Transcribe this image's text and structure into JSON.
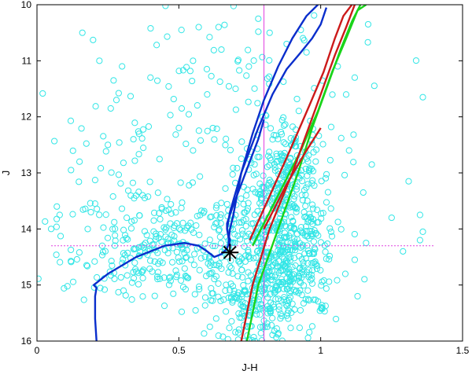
{
  "chart_data": {
    "type": "scatter",
    "title": "",
    "xlabel": "J-H",
    "ylabel": "J",
    "xlim": [
      0,
      1.5
    ],
    "ylim": [
      10,
      16
    ],
    "y_inverted": true,
    "grid": false,
    "legend": "none",
    "x_ticks": [
      {
        "value": 0,
        "label": "0"
      },
      {
        "value": 0.5,
        "label": "0.5"
      },
      {
        "value": 1,
        "label": "1"
      },
      {
        "value": 1.5,
        "label": "1.5"
      }
    ],
    "y_ticks": [
      {
        "value": 10,
        "label": "10"
      },
      {
        "value": 11,
        "label": "11"
      },
      {
        "value": 12,
        "label": "12"
      },
      {
        "value": 13,
        "label": "13"
      },
      {
        "value": 14,
        "label": "14"
      },
      {
        "value": 15,
        "label": "15"
      },
      {
        "value": 16,
        "label": "16"
      }
    ],
    "scatter_color": "#33e6e6",
    "scatter_clusters": [
      {
        "cx": 0.87,
        "cy": 14.3,
        "sx": 0.09,
        "sy": 0.75,
        "n": 560
      },
      {
        "cx": 0.88,
        "cy": 12.8,
        "sx": 0.06,
        "sy": 0.5,
        "n": 130
      },
      {
        "cx": 0.45,
        "cy": 14.4,
        "sx": 0.17,
        "sy": 0.45,
        "n": 280
      },
      {
        "cx": 0.75,
        "cy": 15.3,
        "sx": 0.08,
        "sy": 0.45,
        "n": 150
      },
      {
        "cx": 0.42,
        "cy": 12.8,
        "sx": 0.2,
        "sy": 1.0,
        "n": 90
      },
      {
        "cx": 0.75,
        "cy": 11.3,
        "sx": 0.25,
        "sy": 0.9,
        "n": 60
      }
    ],
    "scatter_outliers": [
      {
        "x": 0.16,
        "y": 10.5
      },
      {
        "x": 0.12,
        "y": 12.95
      },
      {
        "x": 0.15,
        "y": 12.8
      },
      {
        "x": 0.05,
        "y": 14.0
      },
      {
        "x": 0.07,
        "y": 13.6
      },
      {
        "x": 0.08,
        "y": 13.75
      },
      {
        "x": 0.22,
        "y": 11.0
      },
      {
        "x": 0.27,
        "y": 11.35
      },
      {
        "x": 0.28,
        "y": 11.7
      },
      {
        "x": 0.26,
        "y": 11.85
      },
      {
        "x": 0.3,
        "y": 11.1
      },
      {
        "x": 0.4,
        "y": 11.3
      },
      {
        "x": 0.55,
        "y": 11.0
      },
      {
        "x": 0.57,
        "y": 10.4
      },
      {
        "x": 0.64,
        "y": 10.4
      },
      {
        "x": 0.65,
        "y": 10.8
      },
      {
        "x": 0.7,
        "y": 11.5
      },
      {
        "x": 0.78,
        "y": 10.25
      },
      {
        "x": 0.82,
        "y": 10.5
      },
      {
        "x": 0.88,
        "y": 10.7
      },
      {
        "x": 0.93,
        "y": 10.45
      },
      {
        "x": 0.95,
        "y": 10.85
      },
      {
        "x": 1.06,
        "y": 11.1
      },
      {
        "x": 1.12,
        "y": 11.3
      },
      {
        "x": 1.36,
        "y": 11.65
      },
      {
        "x": 1.31,
        "y": 13.15
      },
      {
        "x": 1.25,
        "y": 13.8
      },
      {
        "x": 1.35,
        "y": 13.75
      },
      {
        "x": 1.36,
        "y": 14.05
      },
      {
        "x": 1.35,
        "y": 14.2
      },
      {
        "x": 1.29,
        "y": 14.4
      },
      {
        "x": 1.13,
        "y": 15.2
      },
      {
        "x": 1.12,
        "y": 14.55
      },
      {
        "x": 1.15,
        "y": 13.35
      },
      {
        "x": 1.18,
        "y": 12.85
      },
      {
        "x": 1.1,
        "y": 12.6
      },
      {
        "x": 1.16,
        "y": 14.25
      },
      {
        "x": 0.34,
        "y": 12.4
      },
      {
        "x": 0.25,
        "y": 12.5
      },
      {
        "x": 0.19,
        "y": 13.7
      },
      {
        "x": 0.23,
        "y": 14.3
      },
      {
        "x": 0.55,
        "y": 12.6
      },
      {
        "x": 0.62,
        "y": 12.2
      },
      {
        "x": 0.6,
        "y": 11.6
      },
      {
        "x": 0.51,
        "y": 11.85
      }
    ],
    "reference_lines": {
      "color": "#e040e0",
      "vertical_x": 0.8,
      "horizontal_y": 14.3
    },
    "marked_star": {
      "x": 0.68,
      "y": 14.42,
      "color": "#000000"
    },
    "series": [
      {
        "color": "#0a2ecc",
        "points": [
          [
            0.21,
            16.0
          ],
          [
            0.205,
            15.6
          ],
          [
            0.205,
            15.2
          ],
          [
            0.21,
            15.05
          ],
          [
            0.2,
            15.0
          ],
          [
            0.25,
            14.8
          ],
          [
            0.35,
            14.5
          ],
          [
            0.45,
            14.3
          ],
          [
            0.52,
            14.25
          ],
          [
            0.57,
            14.3
          ],
          [
            0.6,
            14.4
          ],
          [
            0.625,
            14.5
          ],
          [
            0.65,
            14.45
          ],
          [
            0.67,
            14.35
          ],
          [
            0.68,
            14.2
          ],
          [
            0.67,
            14.0
          ],
          [
            0.67,
            13.9
          ],
          [
            0.69,
            13.6
          ],
          [
            0.72,
            13.2
          ],
          [
            0.75,
            12.8
          ],
          [
            0.78,
            12.4
          ],
          [
            0.8,
            12.05
          ]
        ]
      },
      {
        "color": "#0a2ecc",
        "points": [
          [
            0.675,
            14.25
          ],
          [
            0.68,
            14.0
          ],
          [
            0.69,
            13.8
          ],
          [
            0.72,
            13.0
          ],
          [
            0.76,
            12.3
          ],
          [
            0.8,
            11.7
          ],
          [
            0.85,
            11.1
          ],
          [
            0.9,
            10.6
          ],
          [
            0.95,
            10.2
          ],
          [
            0.99,
            10.0
          ]
        ]
      },
      {
        "color": "#0a2ecc",
        "points": [
          [
            0.68,
            14.3
          ],
          [
            0.67,
            14.0
          ],
          [
            0.68,
            13.7
          ],
          [
            0.72,
            13.0
          ],
          [
            0.78,
            12.2
          ],
          [
            0.83,
            11.6
          ],
          [
            0.88,
            11.15
          ],
          [
            0.93,
            10.85
          ],
          [
            0.97,
            10.6
          ],
          [
            1.0,
            10.35
          ],
          [
            1.02,
            10.05
          ]
        ]
      },
      {
        "color": "#1ad41a",
        "points": [
          [
            0.74,
            16.0
          ],
          [
            0.78,
            15.0
          ],
          [
            0.85,
            14.0
          ],
          [
            0.92,
            13.0
          ],
          [
            0.97,
            12.2
          ],
          [
            1.02,
            11.5
          ],
          [
            1.07,
            10.8
          ],
          [
            1.11,
            10.3
          ],
          [
            1.14,
            10.0
          ]
        ]
      },
      {
        "color": "#1ad41a",
        "points": [
          [
            0.76,
            14.3
          ],
          [
            0.85,
            13.4
          ],
          [
            0.93,
            12.6
          ],
          [
            0.99,
            11.9
          ],
          [
            1.04,
            11.2
          ],
          [
            1.09,
            10.6
          ],
          [
            1.13,
            10.1
          ],
          [
            1.16,
            10.0
          ]
        ]
      },
      {
        "color": "#cc1a1a",
        "points": [
          [
            0.72,
            16.0
          ],
          [
            0.76,
            15.0
          ],
          [
            0.82,
            14.0
          ],
          [
            0.9,
            13.0
          ],
          [
            0.95,
            12.3
          ],
          [
            1.0,
            11.6
          ],
          [
            1.05,
            10.9
          ],
          [
            1.09,
            10.4
          ],
          [
            1.12,
            10.0
          ]
        ]
      },
      {
        "color": "#cc1a1a",
        "points": [
          [
            0.75,
            14.2
          ],
          [
            0.83,
            13.3
          ],
          [
            0.9,
            12.5
          ],
          [
            0.96,
            11.8
          ],
          [
            1.01,
            11.2
          ],
          [
            1.05,
            10.6
          ],
          [
            1.08,
            10.2
          ],
          [
            1.11,
            10.0
          ]
        ]
      },
      {
        "color": "#cc1a1a",
        "points": [
          [
            0.8,
            14.0
          ],
          [
            0.88,
            13.2
          ],
          [
            0.95,
            12.6
          ],
          [
            1.0,
            12.2
          ]
        ]
      }
    ]
  }
}
